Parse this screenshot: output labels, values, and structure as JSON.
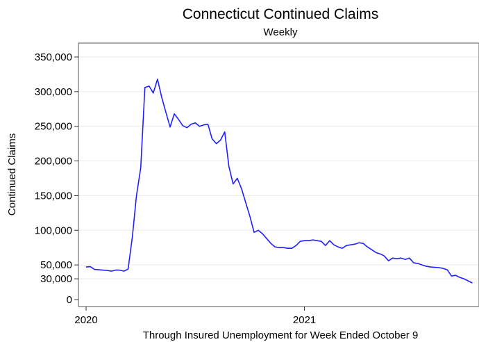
{
  "chart_data": {
    "type": "line",
    "title": "Connecticut Continued Claims",
    "subtitle": "Weekly",
    "ylabel": "Continued Claims",
    "xlabel": "Through Insured Unemployment for Week Ended October 9",
    "ylim": [
      0,
      360000
    ],
    "yticks": [
      {
        "value": 0,
        "label": "0"
      },
      {
        "value": 30000,
        "label": "30,000"
      },
      {
        "value": 50000,
        "label": "50,000"
      },
      {
        "value": 100000,
        "label": "100,000"
      },
      {
        "value": 150000,
        "label": "150,000"
      },
      {
        "value": 200000,
        "label": "200,000"
      },
      {
        "value": 250000,
        "label": "250,000"
      },
      {
        "value": 300000,
        "label": "300,000"
      },
      {
        "value": 350000,
        "label": "350,000"
      }
    ],
    "xticks": [
      {
        "value": "2020-01-04",
        "label": "2020"
      },
      {
        "value": "2021-01-02",
        "label": "2021"
      }
    ],
    "xlim": [
      "2019-12-28",
      "2021-10-13"
    ],
    "grid": true,
    "line_color": "#1f1fff",
    "x": [
      "2020-01-04",
      "2020-01-11",
      "2020-01-18",
      "2020-01-25",
      "2020-02-01",
      "2020-02-08",
      "2020-02-15",
      "2020-02-22",
      "2020-02-29",
      "2020-03-07",
      "2020-03-14",
      "2020-03-21",
      "2020-03-28",
      "2020-04-04",
      "2020-04-11",
      "2020-04-18",
      "2020-04-25",
      "2020-05-02",
      "2020-05-09",
      "2020-05-16",
      "2020-05-23",
      "2020-05-30",
      "2020-06-06",
      "2020-06-13",
      "2020-06-20",
      "2020-06-27",
      "2020-07-04",
      "2020-07-11",
      "2020-07-18",
      "2020-07-25",
      "2020-08-01",
      "2020-08-08",
      "2020-08-15",
      "2020-08-22",
      "2020-08-29",
      "2020-09-05",
      "2020-09-12",
      "2020-09-19",
      "2020-09-26",
      "2020-10-03",
      "2020-10-10",
      "2020-10-17",
      "2020-10-24",
      "2020-10-31",
      "2020-11-07",
      "2020-11-14",
      "2020-11-21",
      "2020-11-28",
      "2020-12-05",
      "2020-12-12",
      "2020-12-19",
      "2020-12-26",
      "2021-01-02",
      "2021-01-09",
      "2021-01-16",
      "2021-01-23",
      "2021-01-30",
      "2021-02-06",
      "2021-02-13",
      "2021-02-20",
      "2021-02-27",
      "2021-03-06",
      "2021-03-13",
      "2021-03-20",
      "2021-03-27",
      "2021-04-03",
      "2021-04-10",
      "2021-04-17",
      "2021-04-24",
      "2021-05-01",
      "2021-05-08",
      "2021-05-15",
      "2021-05-22",
      "2021-05-29",
      "2021-06-05",
      "2021-06-12",
      "2021-06-19",
      "2021-06-26",
      "2021-07-03",
      "2021-07-10",
      "2021-07-17",
      "2021-07-24",
      "2021-07-31",
      "2021-08-07",
      "2021-08-14",
      "2021-08-21",
      "2021-08-28",
      "2021-09-04",
      "2021-09-11",
      "2021-09-18",
      "2021-09-25",
      "2021-10-02",
      "2021-10-09"
    ],
    "series": [
      {
        "values": [
          47000,
          47500,
          43500,
          43000,
          42500,
          42000,
          41000,
          42500,
          42500,
          41000,
          44000,
          90000,
          150000,
          190000,
          306000,
          308000,
          298000,
          318000,
          292000,
          270000,
          249000,
          268000,
          260000,
          251000,
          248000,
          253000,
          255000,
          250000,
          252000,
          253000,
          232000,
          225000,
          230000,
          242000,
          192000,
          167000,
          175000,
          160000,
          140000,
          120000,
          97000,
          100000,
          95000,
          88000,
          81000,
          76000,
          75000,
          75000,
          74000,
          74000,
          78000,
          84000,
          85000,
          85000,
          86000,
          85000,
          84000,
          78000,
          85000,
          79000,
          76000,
          74000,
          78000,
          79000,
          80000,
          82000,
          81000,
          76000,
          72000,
          68000,
          66000,
          63000,
          56000,
          60000,
          59000,
          60000,
          58000,
          60000,
          53000,
          52000,
          50000,
          48000,
          47000,
          46500,
          46000,
          45000,
          43000,
          34000,
          35000,
          32000,
          30000,
          27000,
          24000
        ]
      }
    ]
  }
}
